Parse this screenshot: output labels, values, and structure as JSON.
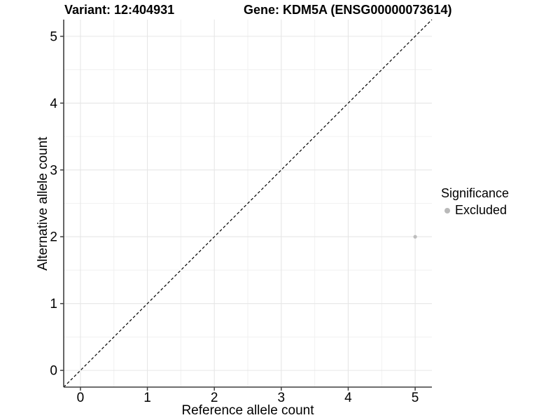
{
  "chart_data": {
    "type": "scatter",
    "title_left": "Variant: 12:404931",
    "title_right": "Gene: KDM5A (ENSG00000073614)",
    "xlabel": "Reference allele count",
    "ylabel": "Alternative allele count",
    "xlim": [
      -0.25,
      5.25
    ],
    "ylim": [
      -0.25,
      5.25
    ],
    "xticks": [
      0,
      1,
      2,
      3,
      4,
      5
    ],
    "yticks": [
      0,
      1,
      2,
      3,
      4,
      5
    ],
    "grid": {
      "major": true,
      "minor": true
    },
    "reference_line": {
      "style": "dashed",
      "slope": 1,
      "intercept": 0
    },
    "series": [
      {
        "name": "Excluded",
        "color": "#bdbdbd",
        "points": [
          {
            "x": 5,
            "y": 2
          }
        ]
      }
    ],
    "legend": {
      "title": "Significance",
      "position": "right"
    }
  },
  "colors": {
    "background": "#ffffff",
    "grid_major": "#e6e6e6",
    "grid_minor": "#f1f1f1",
    "axis_line": "#3f3f3f",
    "tick_mark": "#3f3f3f",
    "tick_label": "#000000",
    "reference_line": "#000000",
    "point": "#bdbdbd",
    "legend_dot": "#b9b9b9"
  }
}
